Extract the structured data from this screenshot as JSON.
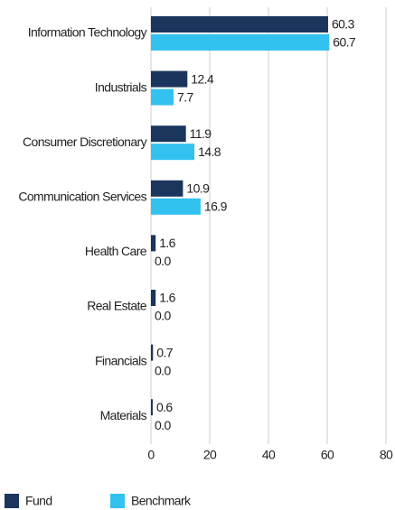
{
  "chart_data": {
    "type": "bar",
    "orientation": "horizontal",
    "categories": [
      "Information Technology",
      "Industrials",
      "Consumer Discretionary",
      "Communication Services",
      "Health Care",
      "Real Estate",
      "Financials",
      "Materials"
    ],
    "series": [
      {
        "name": "Fund",
        "color": "#1b365d",
        "values": [
          60.3,
          12.4,
          11.9,
          10.9,
          1.6,
          1.6,
          0.7,
          0.6
        ],
        "value_labels": [
          "60.3",
          "12.4",
          "11.9",
          "10.9",
          "1.6",
          "1.6",
          "0.7",
          "0.6"
        ]
      },
      {
        "name": "Benchmark",
        "color": "#33c1ef",
        "values": [
          60.7,
          7.7,
          14.8,
          16.9,
          0,
          0,
          0,
          0
        ],
        "value_labels": [
          "60.7",
          "7.7",
          "14.8",
          "16.9",
          "0.0",
          "0.0",
          "0.0",
          "0.0"
        ]
      }
    ],
    "xlim": [
      0,
      80
    ],
    "xticks": [
      0,
      20,
      40,
      60,
      80
    ],
    "grid": true
  }
}
